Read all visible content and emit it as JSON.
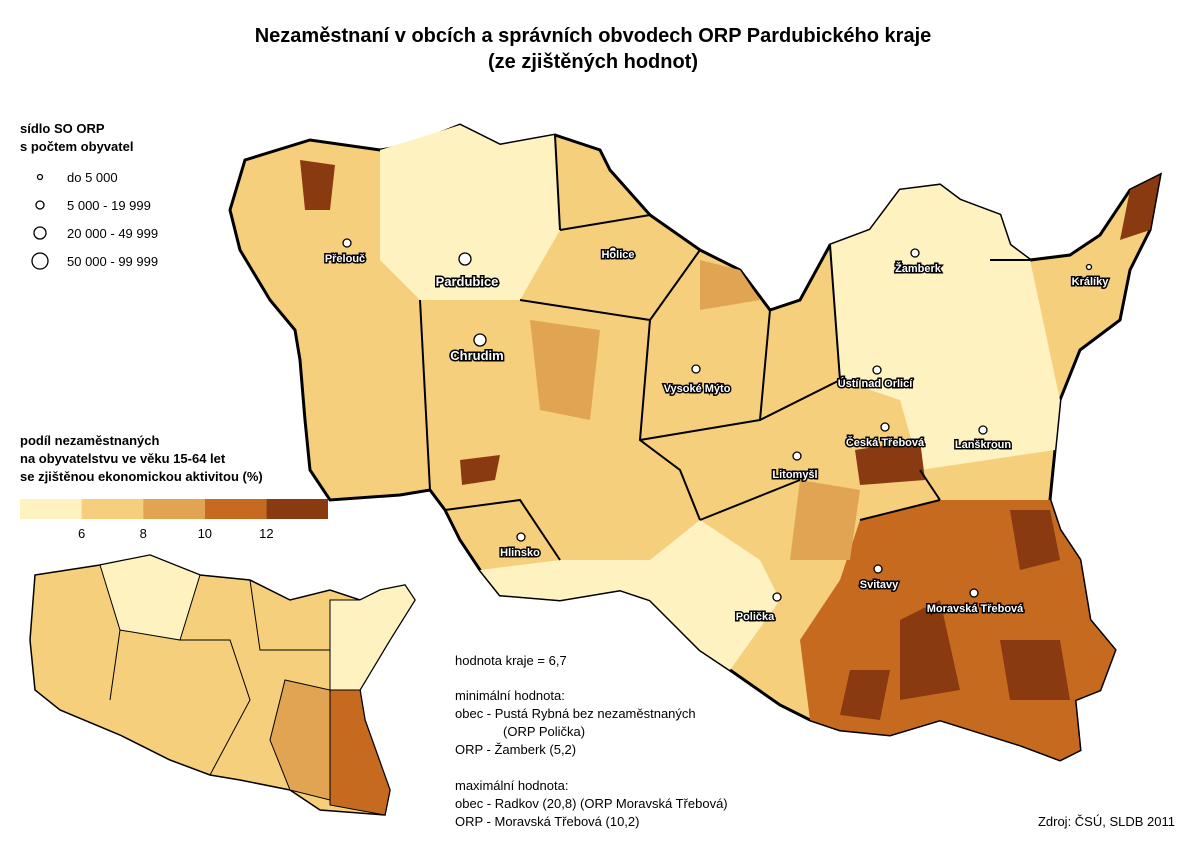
{
  "header": {
    "title": "Nezaměstnaní v obcích a správních obvodech ORP Pardubického kraje",
    "subtitle": "(ze zjištěných hodnot)"
  },
  "size_legend": {
    "title_lines": [
      "sídlo SO ORP",
      "s počtem obyvatel"
    ],
    "items": [
      "do 5 000",
      "5 000 - 19 999",
      "20 000 - 49 999",
      "50 000 - 99 999"
    ]
  },
  "color_legend": {
    "title_lines": [
      "podíl nezaměstnaných",
      "na obyvatelstvu ve věku 15-64 let",
      "se zjištěnou ekonomickou aktivitou (%)"
    ],
    "colors": [
      "#fdf2c0",
      "#f5cf7c",
      "#e1a453",
      "#c56a1f",
      "#8a3a10"
    ],
    "breaks": [
      6,
      8,
      10,
      12
    ]
  },
  "towns": [
    "Přelouč",
    "Pardubice",
    "Holice",
    "Chrudim",
    "Vysoké Mýto",
    "Žamberk",
    "Králíky",
    "Ústí nad Orlicí",
    "Česká Třebová",
    "Lanškroun",
    "Litomyšl",
    "Hlinsko",
    "Svitavy",
    "Polička",
    "Moravská Třebová"
  ],
  "notes": [
    "hodnota kraje = 6,7",
    "minimální hodnota:",
    "obec - Pustá Rybná bez nezaměstnaných",
    "(ORP Polička)",
    "ORP - Žamberk (5,2)",
    "maximální hodnota:",
    "obec - Radkov (20,8) (ORP Moravská Třebová)",
    "ORP - Moravská Třebová (10,2)"
  ],
  "source": "Zdroj: ČSÚ, SLDB 2011"
}
